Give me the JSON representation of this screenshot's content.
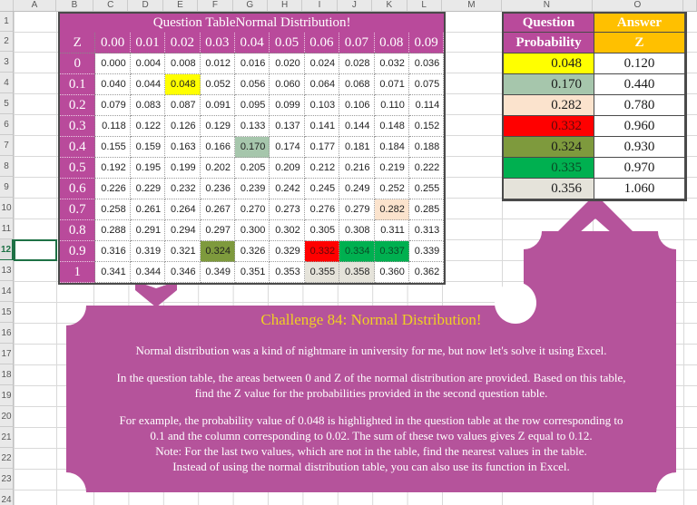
{
  "colors": {
    "magenta": "#B94A9B",
    "shape": "#B5539B",
    "gold": "#FFC000",
    "chtitle": "#F0D022",
    "selection": "#1E7145",
    "yellow": "#FFFF00",
    "sage": "#A6C6AC",
    "peach": "#FBE3CD",
    "red": "#FF0000",
    "olive": "#7E9A3D",
    "green": "#00B050",
    "gray": "#E5E3DA"
  },
  "sheet": {
    "column_letters": [
      "A",
      "B",
      "C",
      "D",
      "E",
      "F",
      "G",
      "H",
      "I",
      "J",
      "K",
      "L",
      "M",
      "N",
      "O"
    ],
    "row_count": 24,
    "active_row": 12,
    "active_cell": "A12"
  },
  "question_table": {
    "title": "Question TableNormal Distribution!",
    "corner_label": "Z",
    "col_headers": [
      "0.00",
      "0.01",
      "0.02",
      "0.03",
      "0.04",
      "0.05",
      "0.06",
      "0.07",
      "0.08",
      "0.09"
    ],
    "row_headers": [
      "0",
      "0.1",
      "0.2",
      "0.3",
      "0.4",
      "0.5",
      "0.6",
      "0.7",
      "0.8",
      "0.9",
      "1"
    ],
    "values": [
      [
        "0.000",
        "0.004",
        "0.008",
        "0.012",
        "0.016",
        "0.020",
        "0.024",
        "0.028",
        "0.032",
        "0.036"
      ],
      [
        "0.040",
        "0.044",
        "0.048",
        "0.052",
        "0.056",
        "0.060",
        "0.064",
        "0.068",
        "0.071",
        "0.075"
      ],
      [
        "0.079",
        "0.083",
        "0.087",
        "0.091",
        "0.095",
        "0.099",
        "0.103",
        "0.106",
        "0.110",
        "0.114"
      ],
      [
        "0.118",
        "0.122",
        "0.126",
        "0.129",
        "0.133",
        "0.137",
        "0.141",
        "0.144",
        "0.148",
        "0.152"
      ],
      [
        "0.155",
        "0.159",
        "0.163",
        "0.166",
        "0.170",
        "0.174",
        "0.177",
        "0.181",
        "0.184",
        "0.188"
      ],
      [
        "0.192",
        "0.195",
        "0.199",
        "0.202",
        "0.205",
        "0.209",
        "0.212",
        "0.216",
        "0.219",
        "0.222"
      ],
      [
        "0.226",
        "0.229",
        "0.232",
        "0.236",
        "0.239",
        "0.242",
        "0.245",
        "0.249",
        "0.252",
        "0.255"
      ],
      [
        "0.258",
        "0.261",
        "0.264",
        "0.267",
        "0.270",
        "0.273",
        "0.276",
        "0.279",
        "0.282",
        "0.285"
      ],
      [
        "0.288",
        "0.291",
        "0.294",
        "0.297",
        "0.300",
        "0.302",
        "0.305",
        "0.308",
        "0.311",
        "0.313"
      ],
      [
        "0.316",
        "0.319",
        "0.321",
        "0.324",
        "0.326",
        "0.329",
        "0.332",
        "0.334",
        "0.337",
        "0.339"
      ],
      [
        "0.341",
        "0.344",
        "0.346",
        "0.349",
        "0.351",
        "0.353",
        "0.355",
        "0.358",
        "0.360",
        "0.362"
      ]
    ],
    "highlights": [
      {
        "row": 1,
        "col": 2,
        "color": "yellow"
      },
      {
        "row": 4,
        "col": 4,
        "color": "sage"
      },
      {
        "row": 7,
        "col": 8,
        "color": "peach"
      },
      {
        "row": 9,
        "col": 3,
        "color": "olive"
      },
      {
        "row": 9,
        "col": 6,
        "color": "red",
        "text_color": "#5c0a0a"
      },
      {
        "row": 9,
        "col": 7,
        "color": "green",
        "text_color": "#0a4a26"
      },
      {
        "row": 9,
        "col": 8,
        "color": "green",
        "text_color": "#0a4a26"
      },
      {
        "row": 10,
        "col": 6,
        "color": "gray"
      },
      {
        "row": 10,
        "col": 7,
        "color": "gray"
      }
    ]
  },
  "answer_table": {
    "col1_header": "Question",
    "col2_header": "Answer",
    "col1_subheader": "Probability",
    "col2_subheader": "Z",
    "rows": [
      {
        "probability": "0.048",
        "z": "0.120",
        "color": "yellow"
      },
      {
        "probability": "0.170",
        "z": "0.440",
        "color": "sage"
      },
      {
        "probability": "0.282",
        "z": "0.780",
        "color": "peach"
      },
      {
        "probability": "0.332",
        "z": "0.960",
        "color": "red",
        "text_color": "#5c0a0a"
      },
      {
        "probability": "0.324",
        "z": "0.930",
        "color": "olive"
      },
      {
        "probability": "0.335",
        "z": "0.970",
        "color": "green",
        "text_color": "#0a4a26"
      },
      {
        "probability": "0.356",
        "z": "1.060",
        "color": "gray"
      }
    ]
  },
  "challenge": {
    "title": "Challenge 84: Normal Distribution!",
    "paragraphs": [
      [
        "Normal distribution was a kind of nightmare in university for me, but now let's solve it using Excel."
      ],
      [
        "In the question table, the areas between 0 and Z of the normal distribution are provided. Based on this table,",
        "find the Z value for the probabilities provided in the second question table."
      ],
      [
        "For example, the probability value of 0.048 is highlighted in the question table at the row corresponding to",
        "0.1 and the column corresponding to 0.02. The sum of these two values gives Z equal to 0.12.",
        "Note: For the last two values, which are not in the table, find the nearest values in the table.",
        "Instead of using the normal distribution table, you can also use its function in Excel."
      ]
    ]
  }
}
